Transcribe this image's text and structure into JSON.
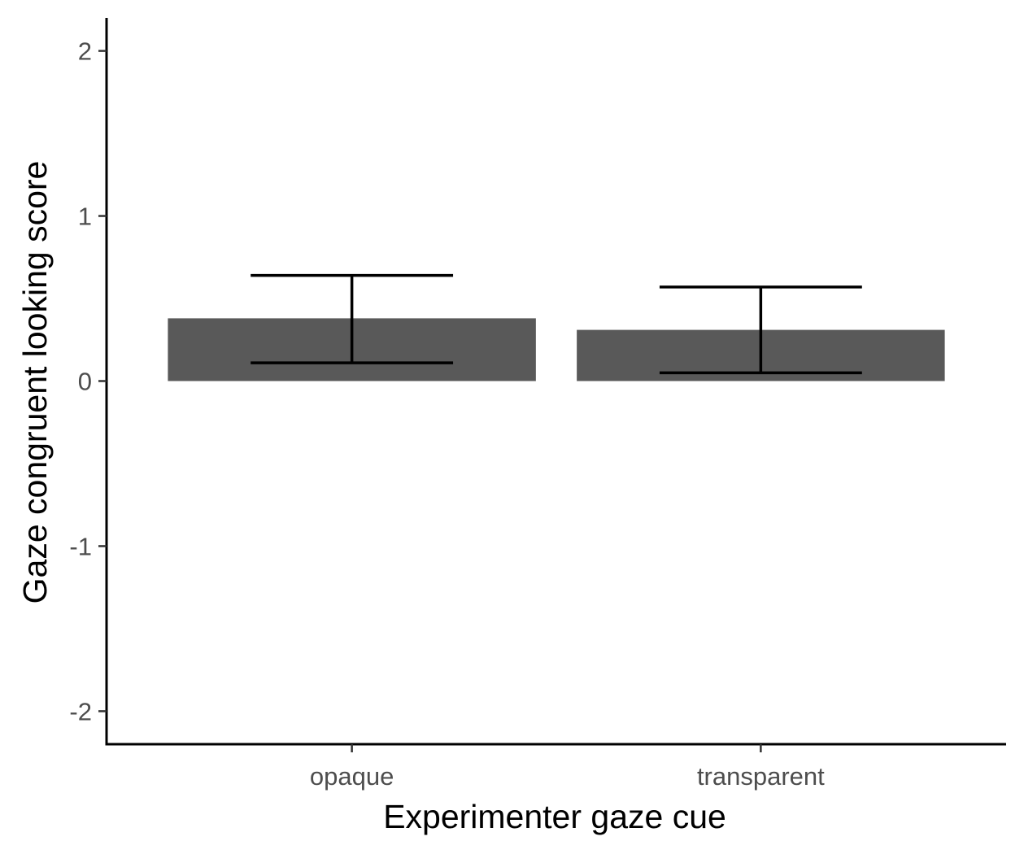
{
  "chart_data": {
    "type": "bar",
    "title": "",
    "xlabel": "Experimenter gaze cue",
    "ylabel": "Gaze congruent looking score",
    "categories": [
      "opaque",
      "transparent"
    ],
    "values": [
      0.38,
      0.31
    ],
    "error_bars": [
      {
        "lower": 0.11,
        "upper": 0.64
      },
      {
        "lower": 0.05,
        "upper": 0.57
      }
    ],
    "ylim": [
      -2.2,
      2.2
    ],
    "yticks": [
      -2,
      -1,
      0,
      1,
      2
    ],
    "grid": false,
    "legend": "none",
    "bar_color": "#595959",
    "errorbar_color": "#000000"
  }
}
